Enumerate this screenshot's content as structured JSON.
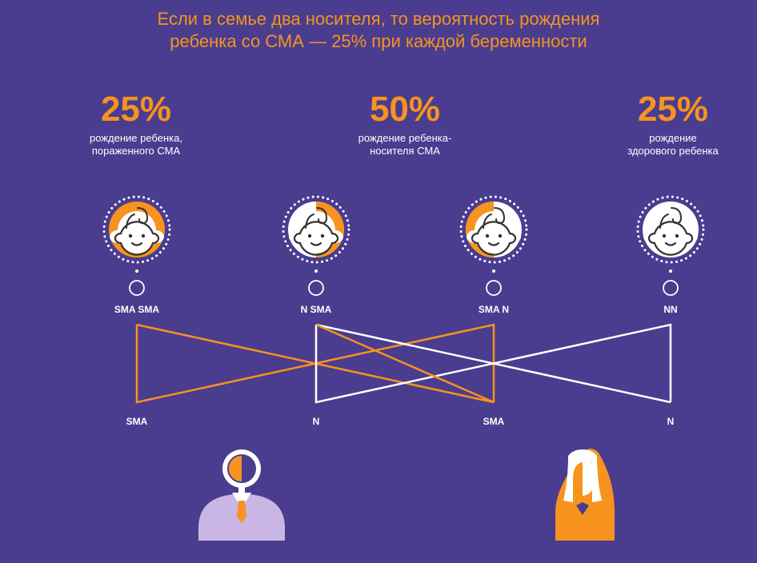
{
  "title": {
    "line1": "Если в семье два носителя, то вероятность рождения",
    "line2": "ребенка со СМА — 25% при каждой беременности"
  },
  "stats": [
    {
      "percent": "25%",
      "caption_line1": "рождение ребенка,",
      "caption_line2": "пораженного СМА"
    },
    {
      "percent": "50%",
      "caption_line1": "рождение ребенка-",
      "caption_line2": "носителя СМА"
    },
    {
      "percent": "25%",
      "caption_line1": "рождение",
      "caption_line2": "здорового ребенка"
    }
  ],
  "children": [
    {
      "genotype": "SMA SMA",
      "fill": "full"
    },
    {
      "genotype": "N SMA",
      "fill": "right-half"
    },
    {
      "genotype": "SMA N",
      "fill": "left-half"
    },
    {
      "genotype": "NN",
      "fill": "none"
    }
  ],
  "alleles": [
    "SMA",
    "N",
    "SMA",
    "N"
  ],
  "colors": {
    "background": "#4a3d8f",
    "accent": "#f7931e",
    "white": "#ffffff",
    "father_body": "#c9b6e4"
  },
  "icons": {
    "father": "father-carrier-icon",
    "mother": "mother-carrier-icon",
    "child": "baby-face-icon"
  }
}
